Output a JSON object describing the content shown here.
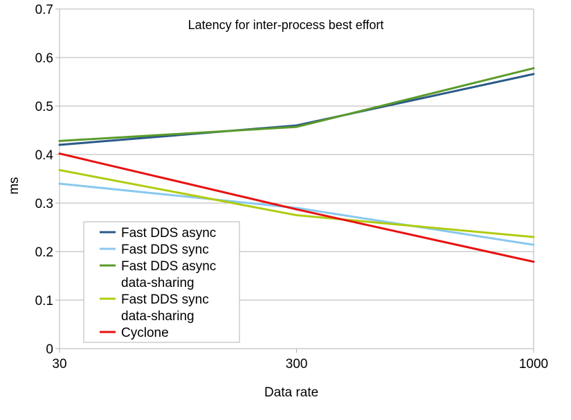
{
  "chart_data": {
    "type": "line",
    "title": "Latency for inter-process best effort",
    "xlabel": "Data rate",
    "ylabel": "ms",
    "categories": [
      "30",
      "300",
      "1000"
    ],
    "ylim": [
      0,
      0.7
    ],
    "yticks": [
      "0",
      "0.1",
      "0.2",
      "0.3",
      "0.4",
      "0.5",
      "0.6",
      "0.7"
    ],
    "grid": true,
    "legend_position": "bottom-left",
    "series": [
      {
        "name": "Fast DDS async",
        "legend_lines": [
          "Fast DDS async"
        ],
        "color": "#2a5a8a",
        "values": [
          0.42,
          0.46,
          0.566
        ]
      },
      {
        "name": "Fast DDS sync",
        "legend_lines": [
          "Fast DDS sync"
        ],
        "color": "#88c8f0",
        "values": [
          0.34,
          0.29,
          0.214
        ]
      },
      {
        "name": "Fast DDS async data-sharing",
        "legend_lines": [
          "Fast DDS async",
          "data-sharing"
        ],
        "color": "#5a9a2a",
        "values": [
          0.428,
          0.457,
          0.578
        ]
      },
      {
        "name": "Fast DDS sync data-sharing",
        "legend_lines": [
          "Fast DDS sync",
          "data-sharing"
        ],
        "color": "#b0cc10",
        "values": [
          0.368,
          0.275,
          0.23
        ]
      },
      {
        "name": "Cyclone",
        "legend_lines": [
          "Cyclone"
        ],
        "color": "#e81010",
        "values": [
          0.402,
          0.287,
          0.179
        ]
      }
    ]
  }
}
